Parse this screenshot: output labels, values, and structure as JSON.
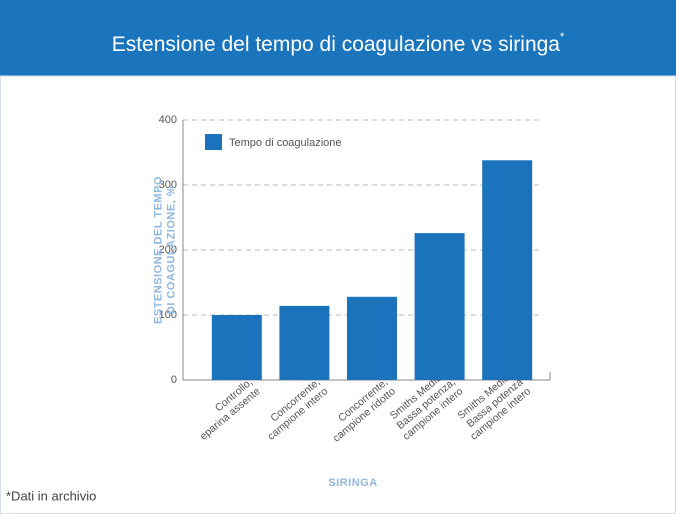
{
  "chart_data": {
    "type": "bar",
    "title": "Estensione del tempo di coagulazione vs siringa",
    "title_note": "*",
    "y_label": [
      "ESTENSIONE DEL TEMPO",
      "DI COAGULAZIONE, %"
    ],
    "x_label": "SIRINGA",
    "footnote": "*Dati in archivio",
    "categories": [
      "Controllo,\neparina assente",
      "Concorrente,\ncampione intero",
      "Concorrente,\ncampione ridotto",
      "Smiths Medical\nBassa potenza,\ncampione intero",
      "Smiths Medical\nBassa potenza\ncampione intero"
    ],
    "series": [
      {
        "name": "Tempo di coagulazione",
        "color": "#1a73bb",
        "values": [
          100,
          114,
          128,
          226,
          338
        ]
      }
    ],
    "ylim": [
      0,
      400
    ],
    "yticks": [
      0,
      100,
      200,
      300,
      400
    ],
    "grid": true,
    "legend": "top-left"
  }
}
